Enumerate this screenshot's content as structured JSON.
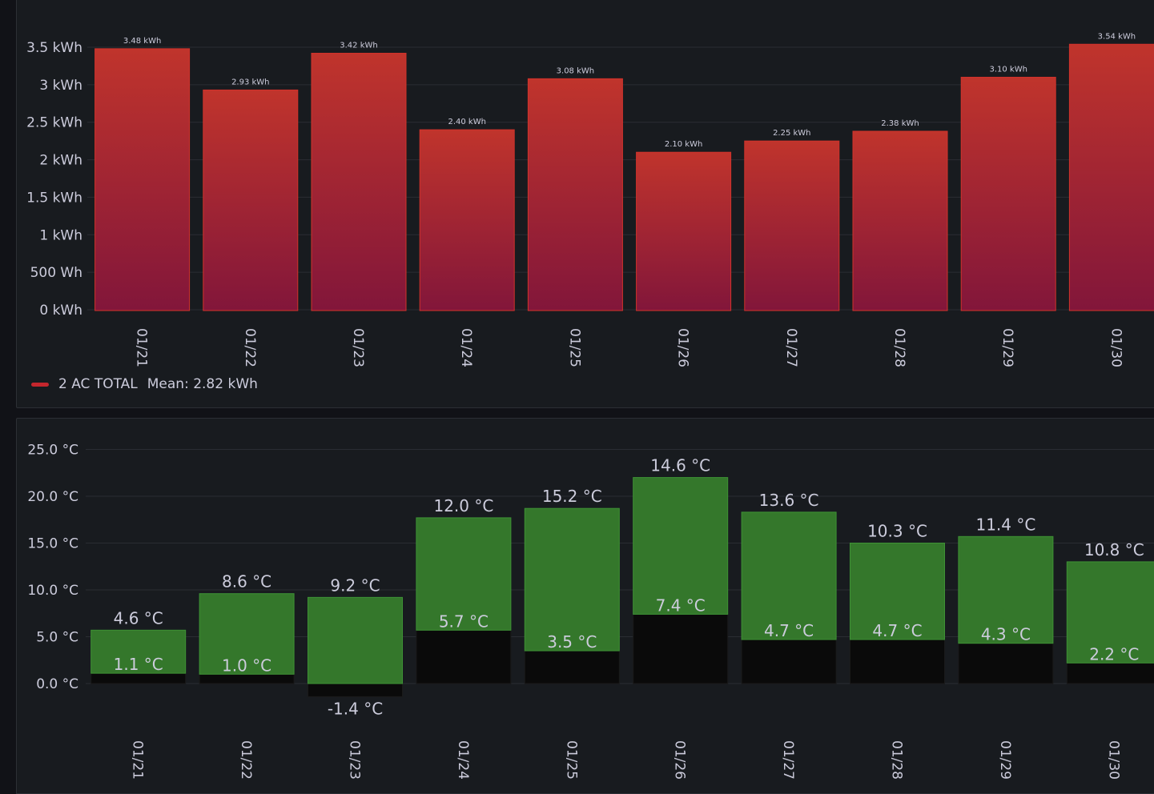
{
  "chart_data": [
    {
      "type": "bar",
      "categories": [
        "01/21",
        "01/22",
        "01/23",
        "01/24",
        "01/25",
        "01/26",
        "01/27",
        "01/28",
        "01/29",
        "01/30"
      ],
      "series": [
        {
          "name": "2 AC TOTAL",
          "values": [
            3.48,
            2.93,
            3.42,
            2.4,
            3.08,
            2.1,
            2.25,
            2.38,
            3.1,
            3.54
          ],
          "color": "#c4262d"
        }
      ],
      "value_labels": [
        "3.48 kWh",
        "2.93 kWh",
        "3.42 kWh",
        "2.40 kWh",
        "3.08 kWh",
        "2.10 kWh",
        "2.25 kWh",
        "2.38 kWh",
        "3.10 kWh",
        "3.54 kWh"
      ],
      "yticks": [
        0,
        0.5,
        1,
        1.5,
        2,
        2.5,
        3,
        3.5
      ],
      "ytick_labels": [
        "0 kWh",
        "500 Wh",
        "1 kWh",
        "1.5 kWh",
        "2 kWh",
        "2.5 kWh",
        "3 kWh",
        "3.5 kWh"
      ],
      "ylim": [
        0,
        3.5
      ],
      "grid": true,
      "legend": {
        "placement": "bottom-left",
        "entries": [
          {
            "label": "2 AC TOTAL",
            "color": "#c4262d"
          }
        ],
        "mean_label": "Mean: 2.82 kWh"
      }
    },
    {
      "type": "bar",
      "categories": [
        "01/21",
        "01/22",
        "01/23",
        "01/24",
        "01/25",
        "01/26",
        "01/27",
        "01/28",
        "01/29",
        "01/30"
      ],
      "series": [
        {
          "values": [
            1.1,
            1.0,
            -1.4,
            5.7,
            3.5,
            7.4,
            4.7,
            4.7,
            4.3,
            2.2
          ],
          "color": "#0a0a0a"
        },
        {
          "values": [
            4.6,
            8.6,
            9.2,
            12.0,
            15.2,
            14.6,
            13.6,
            10.3,
            11.4,
            10.8
          ],
          "color": "#37872d"
        }
      ],
      "low_labels": [
        "1.1 °C",
        "1.0 °C",
        "-1.4 °C",
        "5.7 °C",
        "3.5 °C",
        "7.4 °C",
        "4.7 °C",
        "4.7 °C",
        "4.3 °C",
        "2.2 °C"
      ],
      "high_labels": [
        "4.6 °C",
        "8.6 °C",
        "9.2 °C",
        "12.0 °C",
        "15.2 °C",
        "14.6 °C",
        "13.6 °C",
        "10.3 °C",
        "11.4 °C",
        "10.8 °C"
      ],
      "stacked": true,
      "yticks": [
        0,
        5,
        10,
        15,
        20,
        25
      ],
      "ytick_labels": [
        "0.0 °C",
        "5.0 °C",
        "10.0 °C",
        "15.0 °C",
        "20.0 °C",
        "25.0 °C"
      ],
      "ylim": [
        -1.4,
        25
      ],
      "grid": true
    }
  ]
}
